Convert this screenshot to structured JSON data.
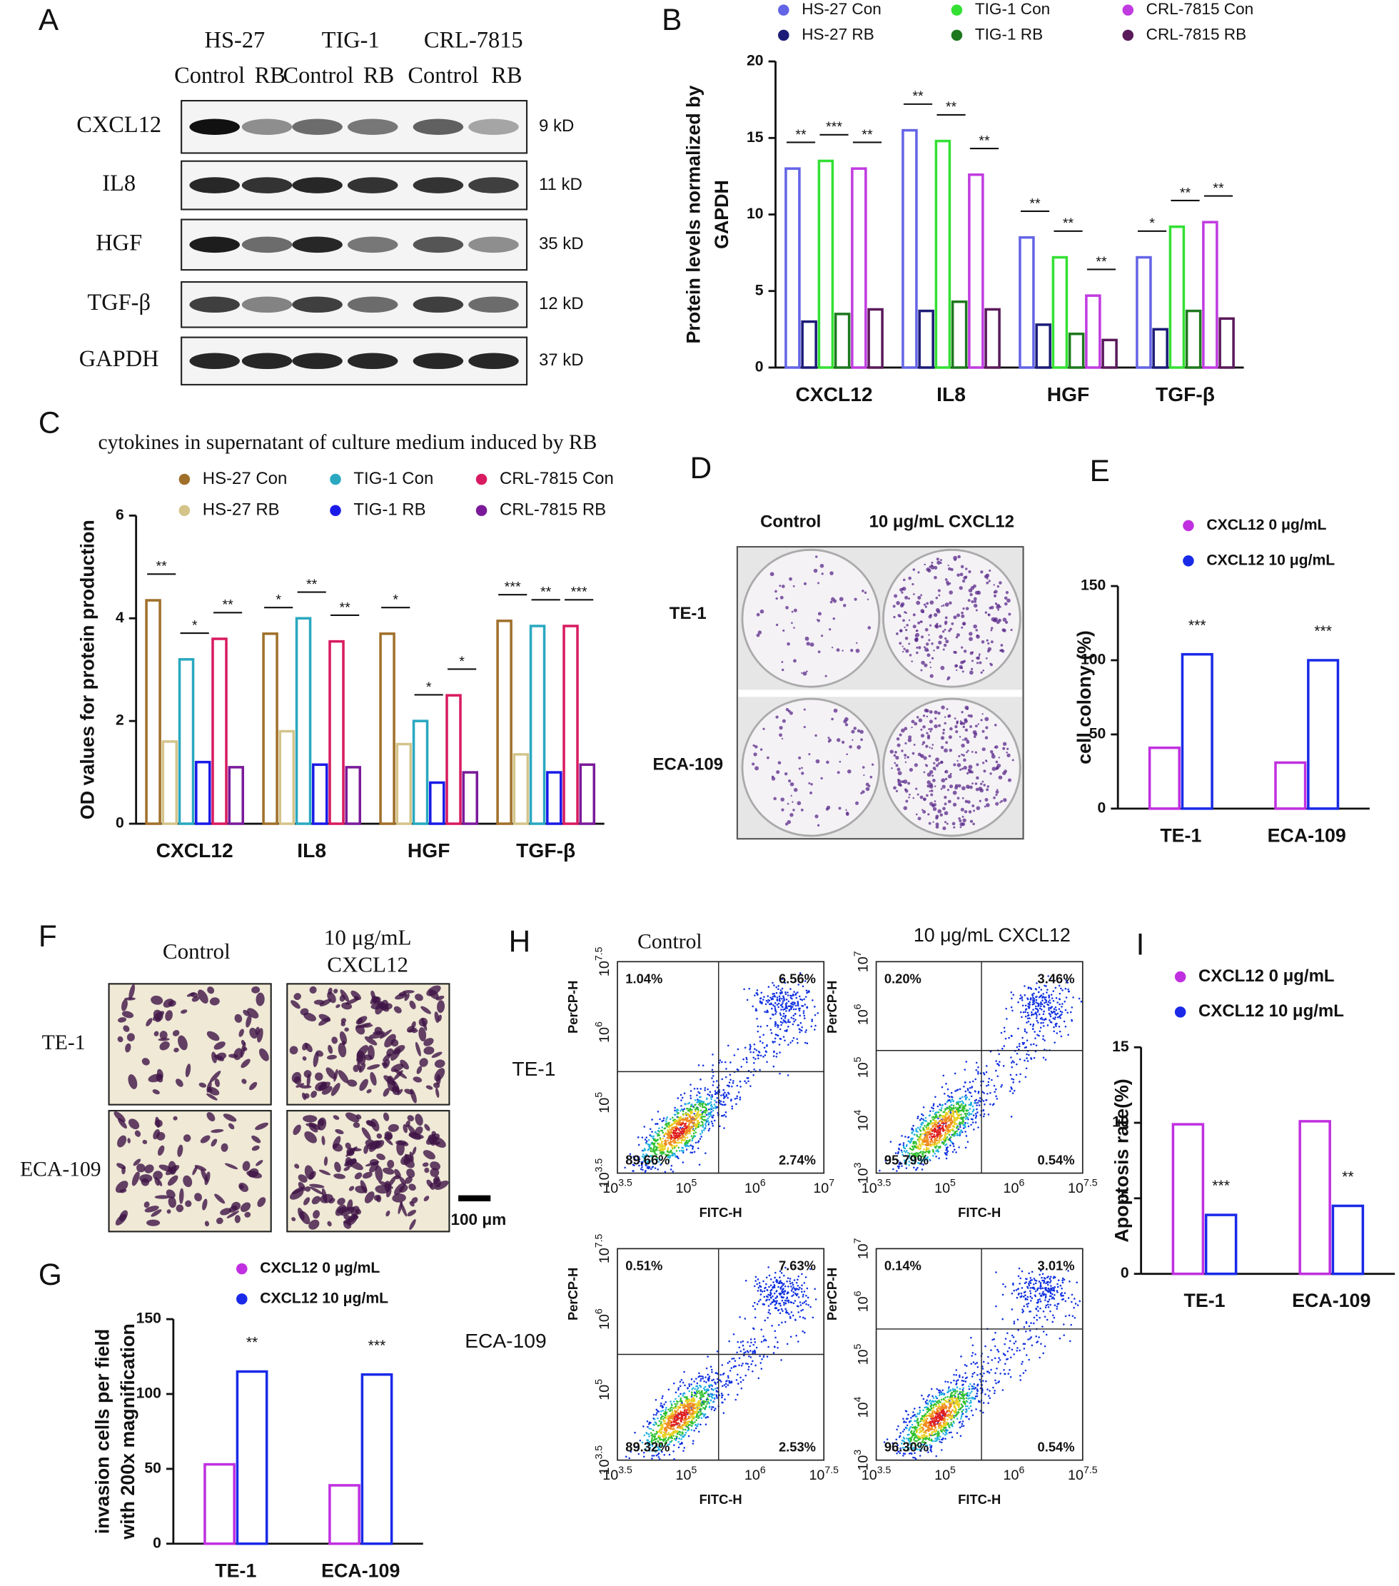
{
  "chart_data": [
    {
      "type": "bar",
      "label": "B",
      "ylabel": [
        "Protein levels normalized by",
        "GAPDH"
      ],
      "categories": [
        "CXCL12",
        "IL8",
        "HGF",
        "TGF-β"
      ],
      "series": [
        {
          "name": "HS-27 Con",
          "color": "#6464e6",
          "values": [
            13,
            15.5,
            8.5,
            7.2
          ]
        },
        {
          "name": "HS-27 RB",
          "color": "#1c1c78",
          "values": [
            3,
            3.7,
            2.8,
            2.5
          ]
        },
        {
          "name": "TIG-1 Con",
          "color": "#33e033",
          "values": [
            13.5,
            14.8,
            7.2,
            9.2
          ]
        },
        {
          "name": "TIG-1 RB",
          "color": "#1e781e",
          "values": [
            3.5,
            4.3,
            2.2,
            3.7
          ]
        },
        {
          "name": "CRL-7815 Con",
          "color": "#c03ce0",
          "values": [
            13,
            12.6,
            4.7,
            9.5
          ]
        },
        {
          "name": "CRL-7815 RB",
          "color": "#5a1a5a",
          "values": [
            3.8,
            3.8,
            1.8,
            3.2
          ]
        }
      ],
      "ylim": [
        0,
        20
      ],
      "yticks": [
        0,
        5,
        10,
        15,
        20
      ],
      "significance": [
        [
          "**",
          "***",
          "**"
        ],
        [
          "**",
          "**",
          "**"
        ],
        [
          "**",
          "**",
          "**"
        ],
        [
          "*",
          "**",
          "**"
        ]
      ]
    },
    {
      "type": "bar",
      "label": "C",
      "title": "cytokines in supernatant of culture medium induced by RB",
      "ylabel": [
        "OD values for protein production"
      ],
      "categories": [
        "CXCL12",
        "IL8",
        "HGF",
        "TGF-β"
      ],
      "series": [
        {
          "name": "HS-27 Con",
          "color": "#a0702a",
          "values": [
            4.35,
            3.7,
            3.7,
            3.95
          ]
        },
        {
          "name": "HS-27 RB",
          "color": "#d4c48a",
          "values": [
            1.6,
            1.8,
            1.55,
            1.35
          ]
        },
        {
          "name": "TIG-1 Con",
          "color": "#2aa8c0",
          "values": [
            3.2,
            4.0,
            2.0,
            3.85
          ]
        },
        {
          "name": "TIG-1 RB",
          "color": "#1a1ae8",
          "values": [
            1.2,
            1.15,
            0.8,
            1.0
          ]
        },
        {
          "name": "CRL-7815 Con",
          "color": "#d81b60",
          "values": [
            3.6,
            3.55,
            2.5,
            3.85
          ]
        },
        {
          "name": "CRL-7815 RB",
          "color": "#7a1a9a",
          "values": [
            1.1,
            1.1,
            1.0,
            1.15
          ]
        }
      ],
      "ylim": [
        0,
        6
      ],
      "yticks": [
        0,
        2,
        4,
        6
      ],
      "significance": [
        [
          "**",
          "*",
          "**"
        ],
        [
          "*",
          "**",
          "**"
        ],
        [
          "*",
          "*",
          "*"
        ],
        [
          "***",
          "**",
          "***"
        ]
      ]
    },
    {
      "type": "bar",
      "label": "E",
      "ylabel": [
        "cell colony  (%)"
      ],
      "categories": [
        "TE-1",
        "ECA-109"
      ],
      "series": [
        {
          "name": "CXCL12 0 μg/mL",
          "color": "#c030e0",
          "values": [
            41,
            31
          ]
        },
        {
          "name": "CXCL12 10 μg/mL",
          "color": "#1a2ae8",
          "values": [
            104,
            100
          ]
        }
      ],
      "ylim": [
        0,
        150
      ],
      "yticks": [
        0,
        50,
        100,
        150
      ],
      "significance": [
        "***",
        "***"
      ]
    },
    {
      "type": "bar",
      "label": "G",
      "ylabel": [
        "invasion cells per field",
        "with 200x magnification"
      ],
      "categories": [
        "TE-1",
        "ECA-109"
      ],
      "series": [
        {
          "name": "CXCL12 0 μg/mL",
          "color": "#c030e0",
          "values": [
            53,
            39
          ]
        },
        {
          "name": "CXCL12 10 μg/mL",
          "color": "#1a2ae8",
          "values": [
            115,
            113
          ]
        }
      ],
      "ylim": [
        0,
        150
      ],
      "yticks": [
        0,
        50,
        100,
        150
      ],
      "significance": [
        "**",
        "***"
      ]
    },
    {
      "type": "bar",
      "label": "I",
      "ylabel": [
        "Apoptosis rate(%)"
      ],
      "categories": [
        "TE-1",
        "ECA-109"
      ],
      "series": [
        {
          "name": "CXCL12 0 μg/mL",
          "color": "#c030e0",
          "values": [
            9.9,
            10.1
          ]
        },
        {
          "name": "CXCL12 10 μg/mL",
          "color": "#1a2ae8",
          "values": [
            3.9,
            4.5
          ]
        }
      ],
      "ylim": [
        0,
        15
      ],
      "yticks": [
        0,
        5,
        10,
        15
      ],
      "significance": [
        "***",
        "**"
      ]
    }
  ],
  "blot": {
    "label": "A",
    "cell_lines": [
      "HS-27",
      "TIG-1",
      "CRL-7815"
    ],
    "lanes": [
      "Control",
      "RB",
      "Control",
      "RB",
      "Control",
      "RB"
    ],
    "proteins": [
      "CXCL12",
      "IL8",
      "HGF",
      "TGF-β",
      "GAPDH"
    ],
    "sizes": [
      "9 kD",
      "11 kD",
      "35 kD",
      "12 kD",
      "37 kD"
    ]
  },
  "colony": {
    "label": "D",
    "columns": [
      "Control",
      "10 μg/mL CXCL12"
    ],
    "rows": [
      "TE-1",
      "ECA-109"
    ]
  },
  "invasion": {
    "label": "F",
    "columns": [
      [
        "Control"
      ],
      [
        "10 μg/mL",
        "CXCL12"
      ]
    ],
    "rows": [
      "TE-1",
      "ECA-109"
    ],
    "scale_bar": "100 μm"
  },
  "flow": {
    "label": "H",
    "columns": [
      "Control",
      "10 μg/mL CXCL12"
    ],
    "rows": [
      "TE-1",
      "ECA-109"
    ],
    "xlabel": "FITC-H",
    "ylabel": "PerCP-H",
    "tick_base": "10",
    "plots": [
      {
        "quadrants": [
          "1.04%",
          "6.56%",
          "89.66%",
          "2.74%"
        ],
        "xticks": [
          "3.5",
          "5",
          "6",
          "7"
        ],
        "yticks": [
          "3.5",
          "5",
          "6",
          "7.5"
        ]
      },
      {
        "quadrants": [
          "0.20%",
          "3.46%",
          "95.79%",
          "0.54%"
        ],
        "xticks": [
          "3.5",
          "5",
          "6",
          "7.5"
        ],
        "yticks": [
          "3",
          "4",
          "5",
          "6",
          "7"
        ]
      },
      {
        "quadrants": [
          "0.51%",
          "7.63%",
          "89.32%",
          "2.53%"
        ],
        "xticks": [
          "3.5",
          "5",
          "6",
          "7.5"
        ],
        "yticks": [
          "3.5",
          "5",
          "6",
          "7.5"
        ]
      },
      {
        "quadrants": [
          "0.14%",
          "3.01%",
          "96.30%",
          "0.54%"
        ],
        "xticks": [
          "3.5",
          "5",
          "6",
          "7.5"
        ],
        "yticks": [
          "3",
          "4",
          "5",
          "6",
          "7"
        ]
      }
    ]
  }
}
